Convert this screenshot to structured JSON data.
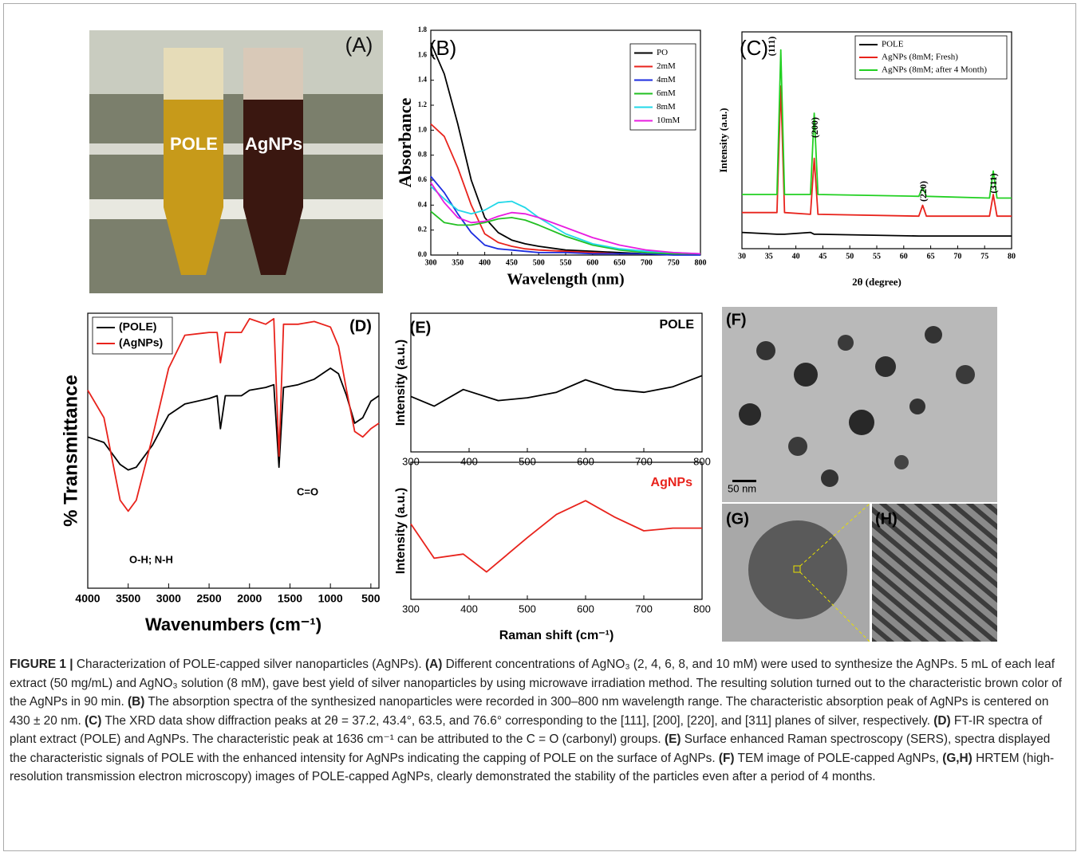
{
  "chart_data": [
    {
      "type": "line",
      "panel": "(B)",
      "xlabel": "Wavelength (nm)",
      "ylabel": "Absorbance",
      "x": [
        300,
        325,
        350,
        375,
        400,
        425,
        450,
        475,
        500,
        550,
        600,
        650,
        700,
        750,
        800
      ],
      "xlim": [
        300,
        800
      ],
      "xticks": [
        300,
        350,
        400,
        450,
        500,
        550,
        600,
        650,
        700,
        750,
        800
      ],
      "ylim": [
        0,
        1.8
      ],
      "yticks": [
        {
          "value": 0,
          "label": "0.0"
        },
        0.2,
        0.4,
        0.6,
        0.8,
        {
          "value": 1,
          "label": "1.0"
        },
        1.2,
        1.4,
        1.6,
        1.8
      ],
      "legend": "upper right",
      "series": [
        {
          "name": "PO",
          "color": "#000000",
          "values": [
            1.7,
            1.45,
            1.05,
            0.6,
            0.3,
            0.18,
            0.12,
            0.09,
            0.07,
            0.04,
            0.03,
            0.02,
            0.01,
            0.01,
            0.01
          ]
        },
        {
          "name": "2mM",
          "color": "#e8231c",
          "values": [
            1.05,
            0.95,
            0.7,
            0.4,
            0.17,
            0.1,
            0.07,
            0.05,
            0.04,
            0.03,
            0.02,
            0.01,
            0.01,
            0.01,
            0.01
          ]
        },
        {
          "name": "4mM",
          "color": "#1c2de0",
          "values": [
            0.63,
            0.5,
            0.33,
            0.18,
            0.08,
            0.05,
            0.04,
            0.03,
            0.02,
            0.02,
            0.01,
            0.01,
            0.01,
            0,
            0
          ]
        },
        {
          "name": "6mM",
          "color": "#22c022",
          "values": [
            0.35,
            0.26,
            0.24,
            0.24,
            0.26,
            0.29,
            0.3,
            0.28,
            0.24,
            0.15,
            0.08,
            0.04,
            0.02,
            0.01,
            0.01
          ]
        },
        {
          "name": "8mM",
          "color": "#22d8e8",
          "values": [
            0.55,
            0.45,
            0.36,
            0.33,
            0.36,
            0.42,
            0.43,
            0.38,
            0.3,
            0.17,
            0.09,
            0.05,
            0.03,
            0.02,
            0.01
          ]
        },
        {
          "name": "10mM",
          "color": "#e81ce0",
          "values": [
            0.58,
            0.42,
            0.3,
            0.26,
            0.27,
            0.31,
            0.34,
            0.33,
            0.3,
            0.22,
            0.14,
            0.08,
            0.04,
            0.02,
            0.01
          ]
        }
      ]
    },
    {
      "type": "line",
      "panel": "(C)",
      "xlabel": "2θ (degree)",
      "ylabel": "Intensity (a.u.)",
      "x": [
        30,
        36.5,
        37.2,
        37.9,
        42.7,
        43.4,
        44.1,
        62.8,
        63.5,
        64.2,
        75.9,
        76.6,
        77.3,
        80
      ],
      "xlim": [
        30,
        80
      ],
      "xticks": [
        30,
        35,
        40,
        45,
        50,
        55,
        60,
        65,
        70,
        75,
        80
      ],
      "ylim": [
        0,
        1.2
      ],
      "legend": "upper right",
      "annotations": [
        "(111)",
        "(200)",
        "(220)",
        "(311)"
      ],
      "series": [
        {
          "name": "POLE",
          "color": "#000000",
          "values": [
            0.09,
            0.08,
            0.08,
            0.08,
            0.09,
            0.08,
            0.08,
            0.07,
            0.07,
            0.07,
            0.07,
            0.07,
            0.07,
            0.07
          ]
        },
        {
          "name": "AgNPs (8mM; Fresh)",
          "color": "#e8231c",
          "values": [
            0.2,
            0.2,
            0.9,
            0.2,
            0.19,
            0.5,
            0.19,
            0.18,
            0.24,
            0.18,
            0.18,
            0.3,
            0.18,
            0.18
          ]
        },
        {
          "name": "AgNPs (8mM; after 4 Month)",
          "color": "#22d022",
          "values": [
            0.3,
            0.3,
            1.1,
            0.3,
            0.3,
            0.75,
            0.3,
            0.29,
            0.34,
            0.29,
            0.28,
            0.43,
            0.28,
            0.28
          ]
        }
      ]
    },
    {
      "type": "line",
      "panel": "(D)",
      "xlabel": "Wavenumbers (cm⁻¹)",
      "ylabel": "% Transmittance",
      "x": [
        4000,
        3800,
        3600,
        3500,
        3400,
        3200,
        3000,
        2800,
        2500,
        2400,
        2360,
        2300,
        2100,
        2000,
        1800,
        1700,
        1636,
        1580,
        1400,
        1200,
        1000,
        900,
        800,
        700,
        600,
        500,
        400
      ],
      "xlim": [
        4000,
        400
      ],
      "xticks": [
        4000,
        3500,
        3000,
        2500,
        2000,
        1500,
        1000,
        500
      ],
      "ylim": [
        0,
        100
      ],
      "legend": "upper left",
      "annotations": [
        "O-H; N-H",
        "C=O"
      ],
      "series": [
        {
          "name": "(POLE)",
          "color": "#000000",
          "values": [
            55,
            53,
            45,
            43,
            44,
            52,
            63,
            67,
            69,
            70,
            58,
            70,
            70,
            72,
            73,
            74,
            44,
            73,
            74,
            76,
            80,
            78,
            70,
            60,
            62,
            68,
            70
          ]
        },
        {
          "name": "(AgNPs)",
          "color": "#e8231c",
          "values": [
            72,
            62,
            32,
            28,
            32,
            55,
            80,
            92,
            93,
            93,
            82,
            93,
            93,
            98,
            96,
            98,
            48,
            96,
            96,
            97,
            95,
            88,
            72,
            57,
            55,
            58,
            60
          ]
        }
      ]
    },
    {
      "type": "line",
      "panel": "(E)",
      "title": "POLE",
      "title_color": "#000000",
      "ylabel": "Intensity (a.u.)",
      "x": [
        300,
        340,
        390,
        450,
        500,
        550,
        600,
        650,
        700,
        750,
        800
      ],
      "xlim": [
        300,
        800
      ],
      "xticks": [
        300,
        400,
        500,
        600,
        700,
        800
      ],
      "ylim": [
        0,
        100
      ],
      "series": [
        {
          "color": "#000000",
          "values": [
            40,
            33,
            45,
            37,
            39,
            43,
            52,
            45,
            43,
            47,
            55
          ]
        }
      ]
    },
    {
      "type": "line",
      "title": "AgNPs",
      "title_color": "#e8231c",
      "ylabel": "Intensity (a.u.)",
      "xlabel": "Raman shift (cm⁻¹)",
      "x": [
        300,
        340,
        390,
        430,
        500,
        550,
        600,
        650,
        700,
        750,
        800
      ],
      "xlim": [
        300,
        800
      ],
      "xticks": [
        300,
        400,
        500,
        600,
        700,
        800
      ],
      "ylim": [
        0,
        100
      ],
      "series": [
        {
          "color": "#e8231c",
          "values": [
            55,
            30,
            33,
            20,
            45,
            62,
            72,
            60,
            50,
            52,
            52
          ]
        }
      ]
    }
  ],
  "photos": {
    "A": {
      "panel": "(A)",
      "tube_labels": [
        "POLE",
        "AgNPs"
      ]
    },
    "F": {
      "panel": "(F)",
      "scale_bar": "50 nm"
    },
    "G": {
      "panel": "(G)"
    },
    "H": {
      "panel": "(H)"
    }
  },
  "caption": {
    "label": "FIGURE 1 |",
    "intro": " Characterization of POLE-capped silver nanoparticles (AgNPs). ",
    "parts": [
      {
        "ref": "(A)",
        "text": " Different concentrations of AgNO₃ (2, 4, 6, 8, and 10 mM) were used to synthesize the AgNPs. 5 mL of each leaf extract (50 mg/mL) and AgNO₃ solution (8 mM), gave best yield of silver nanoparticles by using microwave irradiation method. The resulting solution turned out to the characteristic brown color of the AgNPs in 90 min. "
      },
      {
        "ref": "(B)",
        "text": " The absorption spectra of the synthesized nanoparticles were recorded in 300–800 nm wavelength range. The characteristic absorption peak of AgNPs is centered on 430 ± 20 nm. "
      },
      {
        "ref": "(C)",
        "text": " The XRD data show diffraction peaks at 2θ = 37.2, 43.4°, 63.5, and 76.6° corresponding to the [111], [200], [220], and [311] planes of silver, respectively. "
      },
      {
        "ref": "(D)",
        "text": " FT-IR spectra of plant extract (POLE) and AgNPs. The characteristic peak at 1636 cm⁻¹ can be attributed to the C = O (carbonyl) groups. "
      },
      {
        "ref": "(E)",
        "text": " Surface enhanced Raman spectroscopy (SERS), spectra displayed the characteristic signals of POLE with the enhanced intensity for AgNPs indicating the capping of POLE on the surface of AgNPs. "
      },
      {
        "ref": "(F)",
        "text": " TEM image of POLE-capped AgNPs, "
      },
      {
        "ref": "(G,H)",
        "text": " HRTEM (high-resolution transmission electron microscopy) images of POLE-capped AgNPs, clearly demonstrated the stability of the particles even after a period of 4 months."
      }
    ]
  }
}
